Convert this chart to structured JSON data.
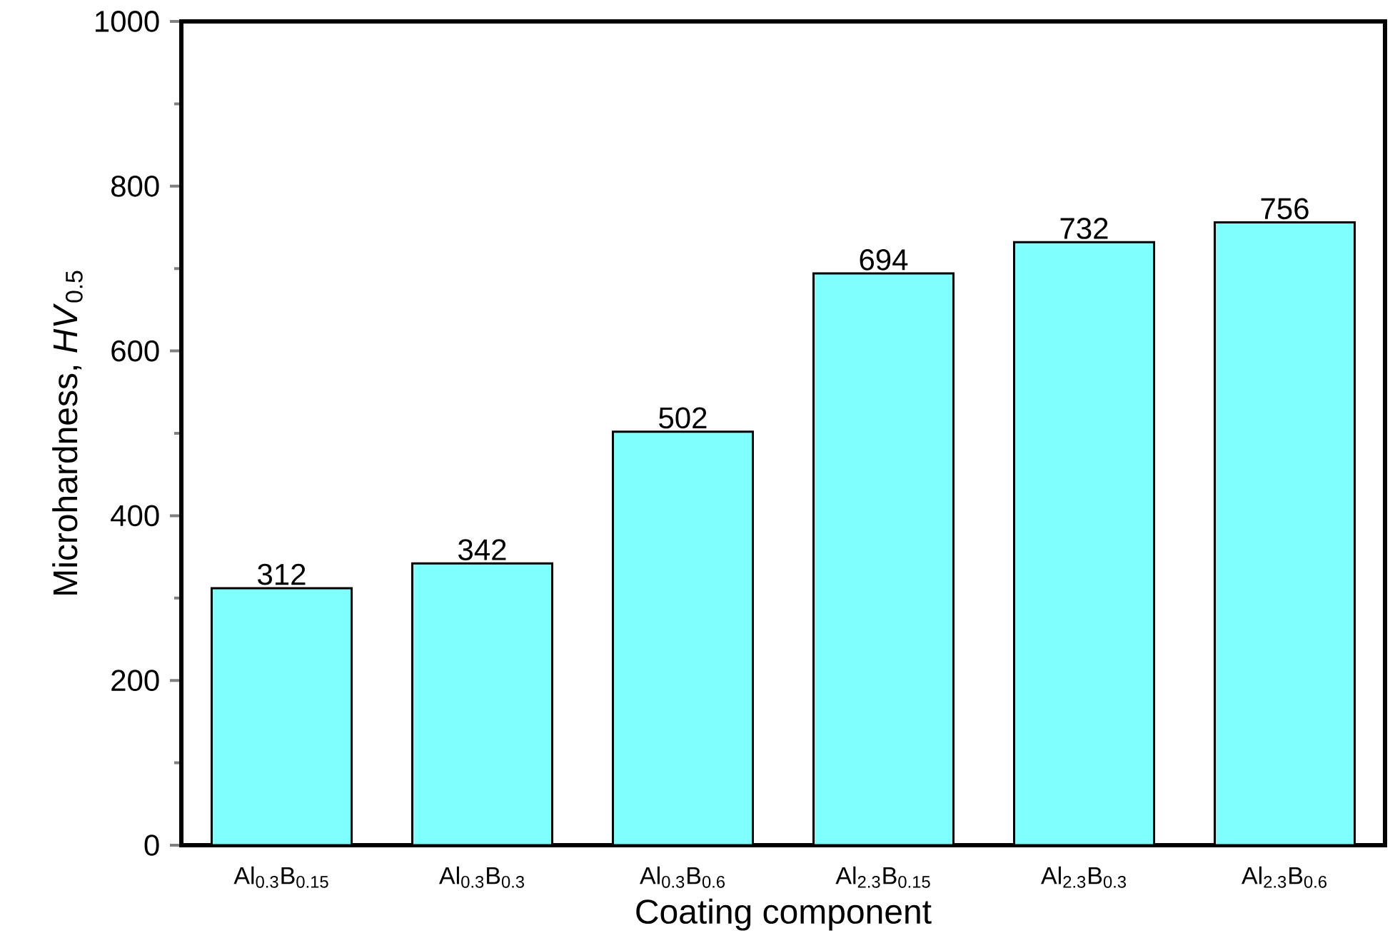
{
  "chart_data": {
    "type": "bar",
    "categories": [
      "Al$_{0.3}$B$_{0.15}$",
      "Al$_{0.3}$B$_{0.3}$",
      "Al$_{0.3}$B$_{0.6}$",
      "Al$_{2.3}$B$_{0.15}$",
      "Al$_{2.3}$B$_{0.3}$",
      "Al$_{2.3}$B$_{0.6}$"
    ],
    "values": [
      312,
      342,
      502,
      694,
      732,
      756
    ],
    "color": "#80ffff",
    "xlabel": "Coating component",
    "ylabel": "Microhardness, *HV*$_{0.5}$",
    "ylim": [
      0,
      1000
    ],
    "yticks": [
      0,
      200,
      400,
      600,
      800,
      1000
    ],
    "data_labels": true
  }
}
